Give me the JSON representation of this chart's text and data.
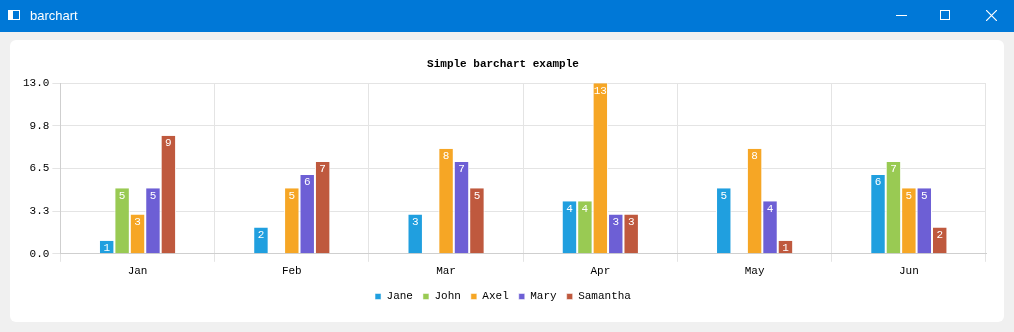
{
  "chart_data": {
    "type": "bar",
    "title": "Simple barchart example",
    "annotations": [
      "barchart"
    ],
    "categories": [
      "Jan",
      "Feb",
      "Mar",
      "Apr",
      "May",
      "Jun"
    ],
    "series": [
      {
        "name": "Jane",
        "color": "#209fdf",
        "values": [
          1,
          2,
          3,
          4,
          5,
          6
        ]
      },
      {
        "name": "John",
        "color": "#99ca53",
        "values": [
          5,
          null,
          null,
          4,
          null,
          7
        ]
      },
      {
        "name": "Axel",
        "color": "#f6a625",
        "values": [
          3,
          5,
          8,
          13,
          8,
          5
        ]
      },
      {
        "name": "Mary",
        "color": "#6d5fd5",
        "values": [
          5,
          6,
          7,
          3,
          4,
          5
        ]
      },
      {
        "name": "Samantha",
        "color": "#bf593e",
        "values": [
          9,
          7,
          5,
          3,
          1,
          2
        ]
      }
    ],
    "ylim": [
      0,
      13
    ],
    "yticks": [
      {
        "value": 0,
        "label": "0.0"
      },
      {
        "value": 3.25,
        "label": "3.3"
      },
      {
        "value": 6.5,
        "label": "6.5"
      },
      {
        "value": 9.75,
        "label": "9.8"
      },
      {
        "value": 13,
        "label": "13.0"
      }
    ],
    "grid": true,
    "legend": "bottom",
    "data_labels": true
  }
}
